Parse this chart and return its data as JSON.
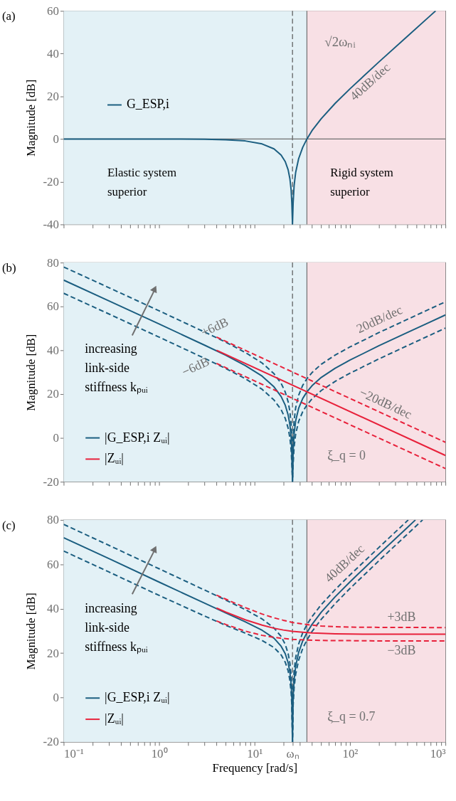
{
  "chart_data": [
    {
      "type": "line",
      "title": "(a)",
      "ylabel": "Magnitude [dB]",
      "log": "x",
      "xlim": [
        0.1,
        1000
      ],
      "ylim": [
        -40,
        60
      ],
      "yticks": [
        -40,
        -20,
        0,
        20,
        40,
        60
      ],
      "xticks": [
        {
          "value": 0.1,
          "label": null
        },
        {
          "value": 0.2,
          "label": null
        },
        {
          "value": 0.3,
          "label": null
        },
        {
          "value": 0.4,
          "label": null
        },
        {
          "value": 0.5,
          "label": null
        },
        {
          "value": 0.6,
          "label": null
        },
        {
          "value": 0.7,
          "label": null
        },
        {
          "value": 0.8,
          "label": null
        },
        {
          "value": 0.9,
          "label": null
        },
        {
          "value": 1,
          "label": null
        },
        {
          "value": 2,
          "label": null
        },
        {
          "value": 3,
          "label": null
        },
        {
          "value": 4,
          "label": null
        },
        {
          "value": 5,
          "label": null
        },
        {
          "value": 6,
          "label": null
        },
        {
          "value": 7,
          "label": null
        },
        {
          "value": 8,
          "label": null
        },
        {
          "value": 9,
          "label": null
        },
        {
          "value": 10,
          "label": null
        },
        {
          "value": 20,
          "label": null
        },
        {
          "value": 30,
          "label": null
        },
        {
          "value": 40,
          "label": null
        },
        {
          "value": 50,
          "label": null
        },
        {
          "value": 60,
          "label": null
        },
        {
          "value": 70,
          "label": null
        },
        {
          "value": 80,
          "label": null
        },
        {
          "value": 90,
          "label": null
        },
        {
          "value": 100,
          "label": null
        },
        {
          "value": 200,
          "label": null
        },
        {
          "value": 300,
          "label": null
        },
        {
          "value": 400,
          "label": null
        },
        {
          "value": 500,
          "label": null
        },
        {
          "value": 600,
          "label": null
        },
        {
          "value": 700,
          "label": null
        },
        {
          "value": 800,
          "label": null
        },
        {
          "value": 900,
          "label": null
        },
        {
          "value": 1000,
          "label": null
        }
      ],
      "tick_labels": "y",
      "legend": "left",
      "bands": [
        {
          "axis": "x",
          "from": 0.1,
          "to": 35.4,
          "color": "#e3f1f6",
          "label": "Elastic system\nsuperior"
        },
        {
          "axis": "x",
          "from": 35.4,
          "to": 1000,
          "color": "#f8e0e5",
          "label": "Rigid system\nsuperior"
        }
      ],
      "ref_lines": [
        {
          "axis": "x",
          "value": 25,
          "line_style": "dashed",
          "color": "#555555"
        },
        {
          "axis": "x",
          "value": 35.4,
          "color": "#707070",
          "label": "√2ωₙᵢ"
        },
        {
          "axis": "y",
          "value": 0,
          "color": "#707070"
        }
      ],
      "annotations": [
        "40dB/dec"
      ],
      "series": [
        {
          "name": "G_ESP,i",
          "color": "#1b5e80",
          "x": [
            0.1,
            0.3,
            1,
            3,
            5,
            8,
            12,
            16,
            19,
            21,
            22.5,
            23.5,
            24.2,
            24.6,
            25,
            25.4,
            26,
            27,
            29,
            32,
            35.4,
            40,
            50,
            70,
            100,
            200,
            400,
            700,
            790
          ],
          "values": [
            0,
            0,
            0,
            -0.1,
            -0.4,
            -0.9,
            -2.3,
            -4.6,
            -7.5,
            -10.6,
            -14.4,
            -18.7,
            -24.0,
            -30.0,
            -40,
            -29.8,
            -21.8,
            -15.6,
            -9.2,
            -3.9,
            0,
            3.9,
            9.5,
            16.7,
            23.5,
            36.0,
            48.1,
            57.9,
            60
          ]
        }
      ]
    },
    {
      "type": "line",
      "title": "(b)",
      "ylabel": "Magnitude [dB]",
      "log": "x",
      "xlim": [
        0.1,
        1000
      ],
      "ylim": [
        -20,
        80
      ],
      "yticks": [
        -20,
        0,
        20,
        40,
        60,
        80
      ],
      "xticks": [
        {
          "value": 0.1,
          "label": null
        },
        {
          "value": 0.2,
          "label": null
        },
        {
          "value": 0.3,
          "label": null
        },
        {
          "value": 0.4,
          "label": null
        },
        {
          "value": 0.5,
          "label": null
        },
        {
          "value": 0.6,
          "label": null
        },
        {
          "value": 0.7,
          "label": null
        },
        {
          "value": 0.8,
          "label": null
        },
        {
          "value": 0.9,
          "label": null
        },
        {
          "value": 1,
          "label": null
        },
        {
          "value": 2,
          "label": null
        },
        {
          "value": 3,
          "label": null
        },
        {
          "value": 4,
          "label": null
        },
        {
          "value": 5,
          "label": null
        },
        {
          "value": 6,
          "label": null
        },
        {
          "value": 7,
          "label": null
        },
        {
          "value": 8,
          "label": null
        },
        {
          "value": 9,
          "label": null
        },
        {
          "value": 10,
          "label": null
        },
        {
          "value": 20,
          "label": null
        },
        {
          "value": 30,
          "label": null
        },
        {
          "value": 40,
          "label": null
        },
        {
          "value": 50,
          "label": null
        },
        {
          "value": 60,
          "label": null
        },
        {
          "value": 70,
          "label": null
        },
        {
          "value": 80,
          "label": null
        },
        {
          "value": 90,
          "label": null
        },
        {
          "value": 100,
          "label": null
        },
        {
          "value": 200,
          "label": null
        },
        {
          "value": 300,
          "label": null
        },
        {
          "value": 400,
          "label": null
        },
        {
          "value": 500,
          "label": null
        },
        {
          "value": 600,
          "label": null
        },
        {
          "value": 700,
          "label": null
        },
        {
          "value": 800,
          "label": null
        },
        {
          "value": 900,
          "label": null
        },
        {
          "value": 1000,
          "label": null
        }
      ],
      "tick_labels": "y",
      "legend": "bottom left",
      "bands": [
        {
          "axis": "x",
          "from": 0.1,
          "to": 35.4,
          "color": "#e3f1f6"
        },
        {
          "axis": "x",
          "from": 35.4,
          "to": 1000,
          "color": "#f8e0e5"
        }
      ],
      "ref_lines": [
        {
          "axis": "x",
          "value": 25,
          "line_style": "dashed",
          "color": "#555555"
        },
        {
          "axis": "x",
          "value": 35.4,
          "color": "#707070"
        }
      ],
      "annotations": [
        "increasing\nlink-side\nstiffness kₚᵤᵢ",
        "+6dB",
        "−6dB",
        "20dB/dec",
        "−20dB/dec",
        "ξ_q = 0"
      ],
      "series": [
        {
          "name": "|G_ESP,i Zᵤᵢ|",
          "color": "#1b5e80",
          "x": [
            0.1,
            0.3,
            1,
            3,
            5,
            8,
            12,
            16,
            19,
            21,
            22.5,
            23.5,
            24.2,
            24.6,
            25,
            25.4,
            26,
            27,
            29,
            32,
            35.4,
            40,
            50,
            70,
            100,
            200,
            400,
            700,
            1000
          ],
          "values": [
            72,
            62.5,
            52,
            42.3,
            37.7,
            33,
            28.2,
            23.3,
            18.9,
            14.9,
            10.5,
            5.9,
            0.3,
            -5.8,
            -20,
            -5.9,
            1.9,
            7.8,
            13.5,
            18,
            21,
            23.8,
            27.6,
            31.8,
            35.5,
            42,
            48.1,
            53,
            56.1
          ]
        },
        {
          "color": "#1b5e80",
          "line_style": "dashed",
          "x": [
            0.1,
            0.3,
            1,
            3,
            5,
            8,
            12,
            16,
            19,
            21,
            22.5,
            23.5,
            24.2,
            24.6,
            25,
            25.4,
            26,
            27,
            29,
            32,
            35.4,
            40,
            50,
            70,
            100,
            200,
            400,
            700,
            1000
          ],
          "values": [
            78,
            68.5,
            58,
            48.3,
            43.7,
            39,
            34.2,
            29.3,
            24.9,
            20.9,
            16.5,
            11.9,
            6.3,
            0.2,
            -20,
            0.1,
            7.9,
            13.8,
            19.5,
            24,
            27,
            29.8,
            33.6,
            37.8,
            41.5,
            48,
            54.1,
            59,
            62.1
          ]
        },
        {
          "color": "#1b5e80",
          "line_style": "dashed",
          "x": [
            0.1,
            0.3,
            1,
            3,
            5,
            8,
            12,
            16,
            19,
            21,
            22.5,
            23.5,
            24.2,
            24.6,
            25,
            25.4,
            26,
            27,
            29,
            32,
            35.4,
            40,
            50,
            70,
            100,
            200,
            400,
            700,
            1000
          ],
          "values": [
            66,
            56.5,
            46,
            36.3,
            31.7,
            27,
            22.2,
            17.3,
            12.9,
            8.9,
            4.5,
            -0.1,
            -5.7,
            -11.8,
            -20,
            -11.9,
            -4.1,
            1.8,
            7.5,
            12,
            15,
            17.8,
            21.6,
            25.8,
            29.5,
            36,
            42.1,
            47,
            50.1
          ]
        },
        {
          "name": "|Zᵤᵢ|",
          "color": "#e8213b",
          "x": [
            4,
            1000
          ],
          "values": [
            40,
            -8
          ]
        },
        {
          "color": "#e8213b",
          "line_style": "dashed",
          "x": [
            4,
            1000
          ],
          "values": [
            46,
            -2
          ]
        },
        {
          "color": "#e8213b",
          "line_style": "dashed",
          "x": [
            4,
            1000
          ],
          "values": [
            34,
            -14
          ]
        }
      ]
    },
    {
      "type": "line",
      "title": "(c)",
      "xlabel": "Frequency [rad/s]",
      "ylabel": "Magnitude [dB]",
      "log": "x",
      "xlim": [
        0.1,
        1000
      ],
      "ylim": [
        -20,
        80
      ],
      "yticks": [
        -20,
        0,
        20,
        40,
        60,
        80
      ],
      "xticks": [
        {
          "value": 0.1,
          "label": "10⁻¹"
        },
        {
          "value": 0.2,
          "label": null
        },
        {
          "value": 0.3,
          "label": null
        },
        {
          "value": 0.4,
          "label": null
        },
        {
          "value": 0.5,
          "label": null
        },
        {
          "value": 0.6,
          "label": null
        },
        {
          "value": 0.7,
          "label": null
        },
        {
          "value": 0.8,
          "label": null
        },
        {
          "value": 0.9,
          "label": null
        },
        {
          "value": 1,
          "label": "10⁰"
        },
        {
          "value": 2,
          "label": null
        },
        {
          "value": 3,
          "label": null
        },
        {
          "value": 4,
          "label": null
        },
        {
          "value": 5,
          "label": null
        },
        {
          "value": 6,
          "label": null
        },
        {
          "value": 7,
          "label": null
        },
        {
          "value": 8,
          "label": null
        },
        {
          "value": 9,
          "label": null
        },
        {
          "value": 10,
          "label": "10¹"
        },
        {
          "value": 20,
          "label": null
        },
        {
          "value": 25,
          "label": "ωₙ"
        },
        {
          "value": 30,
          "label": null
        },
        {
          "value": 40,
          "label": null
        },
        {
          "value": 50,
          "label": null
        },
        {
          "value": 60,
          "label": null
        },
        {
          "value": 70,
          "label": null
        },
        {
          "value": 80,
          "label": null
        },
        {
          "value": 90,
          "label": null
        },
        {
          "value": 100,
          "label": "10²"
        },
        {
          "value": 200,
          "label": null
        },
        {
          "value": 300,
          "label": null
        },
        {
          "value": 400,
          "label": null
        },
        {
          "value": 500,
          "label": null
        },
        {
          "value": 600,
          "label": null
        },
        {
          "value": 700,
          "label": null
        },
        {
          "value": 800,
          "label": null
        },
        {
          "value": 900,
          "label": null
        },
        {
          "value": 1000,
          "label": "10³"
        }
      ],
      "legend": "bottom left",
      "bands": [
        {
          "axis": "x",
          "from": 0.1,
          "to": 35.4,
          "color": "#e3f1f6"
        },
        {
          "axis": "x",
          "from": 35.4,
          "to": 1000,
          "color": "#f8e0e5"
        }
      ],
      "ref_lines": [
        {
          "axis": "x",
          "value": 25,
          "line_style": "dashed",
          "color": "#555555"
        },
        {
          "axis": "x",
          "value": 35.4,
          "color": "#707070"
        }
      ],
      "annotations": [
        "increasing\nlink-side\nstiffness kₚᵤᵢ",
        "40dB/dec",
        "+3dB",
        "−3dB",
        "ξ_q = 0.7"
      ],
      "series": [
        {
          "name": "|G_ESP,i Zᵤᵢ|",
          "color": "#1b5e80",
          "x": [
            0.1,
            0.3,
            1,
            3,
            5,
            8,
            12,
            16,
            19,
            21,
            22.5,
            23.5,
            24.2,
            24.6,
            25,
            25.4,
            26,
            27,
            29,
            32,
            35.4,
            40,
            50,
            70,
            100,
            200,
            400,
            485
          ],
          "values": [
            72,
            62.5,
            52,
            42.5,
            38.1,
            34.1,
            30.3,
            26.7,
            23.1,
            19.7,
            15.7,
            11.3,
            5.9,
            -0.1,
            -20,
            0,
            8,
            14.1,
            20.3,
            25.5,
            29.2,
            32.9,
            38.4,
            45.4,
            52.1,
            64.5,
            76.6,
            80
          ]
        },
        {
          "color": "#1b5e80",
          "line_style": "dashed",
          "x": [
            0.1,
            0.3,
            1,
            3,
            5,
            8,
            12,
            16,
            19,
            21,
            22.5,
            23.5,
            24.2,
            24.6,
            25,
            25.4,
            26,
            27,
            29,
            32,
            35.4,
            40,
            50,
            70,
            100,
            200,
            408
          ],
          "values": [
            78,
            68.5,
            58,
            48.4,
            43.9,
            39.6,
            35.4,
            31.3,
            27.5,
            23.9,
            19.8,
            15.4,
            9.9,
            3.9,
            -20,
            4,
            11.9,
            18,
            24.1,
            29.2,
            32.8,
            36.4,
            41.8,
            48.6,
            55.2,
            67.5,
            80
          ]
        },
        {
          "color": "#1b5e80",
          "line_style": "dashed",
          "x": [
            0.1,
            0.3,
            1,
            3,
            5,
            8,
            12,
            16,
            19,
            21,
            22.5,
            23.5,
            24.2,
            24.6,
            25,
            25.4,
            26,
            27,
            29,
            32,
            35.4,
            40,
            50,
            70,
            100,
            200,
            400,
            577
          ],
          "values": [
            66,
            56.5,
            46,
            36.7,
            32.5,
            29,
            25.7,
            22.5,
            19.2,
            15.9,
            12,
            7.6,
            2.2,
            -3.7,
            -20,
            -3.6,
            4.4,
            10.5,
            16.8,
            22.1,
            25.9,
            29.7,
            35.2,
            42.3,
            49.1,
            61.5,
            73.6,
            80
          ]
        },
        {
          "name": "|Zᵤᵢ|",
          "color": "#e8213b",
          "x": [
            4,
            5,
            8,
            12,
            16,
            20,
            25,
            32,
            40,
            50,
            70,
            100,
            200,
            1000
          ],
          "values": [
            40.3,
            38.5,
            35,
            32.6,
            31.2,
            30.4,
            29.8,
            29.4,
            29.1,
            28.9,
            28.7,
            28.6,
            28.5,
            28.5
          ]
        },
        {
          "color": "#e8213b",
          "line_style": "dashed",
          "x": [
            4,
            5,
            8,
            12,
            16,
            20,
            25,
            32,
            40,
            50,
            70,
            100,
            200,
            1000
          ],
          "values": [
            46.1,
            44.3,
            40.5,
            37.6,
            35.9,
            34.8,
            33.8,
            33.1,
            32.6,
            32.2,
            31.9,
            31.7,
            31.6,
            31.5
          ]
        },
        {
          "color": "#e8213b",
          "line_style": "dashed",
          "x": [
            4,
            5,
            8,
            12,
            16,
            20,
            25,
            32,
            40,
            50,
            70,
            100,
            200,
            1000
          ],
          "values": [
            34.5,
            32.9,
            29.9,
            28,
            27.1,
            26.6,
            26.2,
            26,
            25.8,
            25.7,
            25.6,
            25.6,
            25.5,
            25.5
          ]
        }
      ]
    }
  ]
}
